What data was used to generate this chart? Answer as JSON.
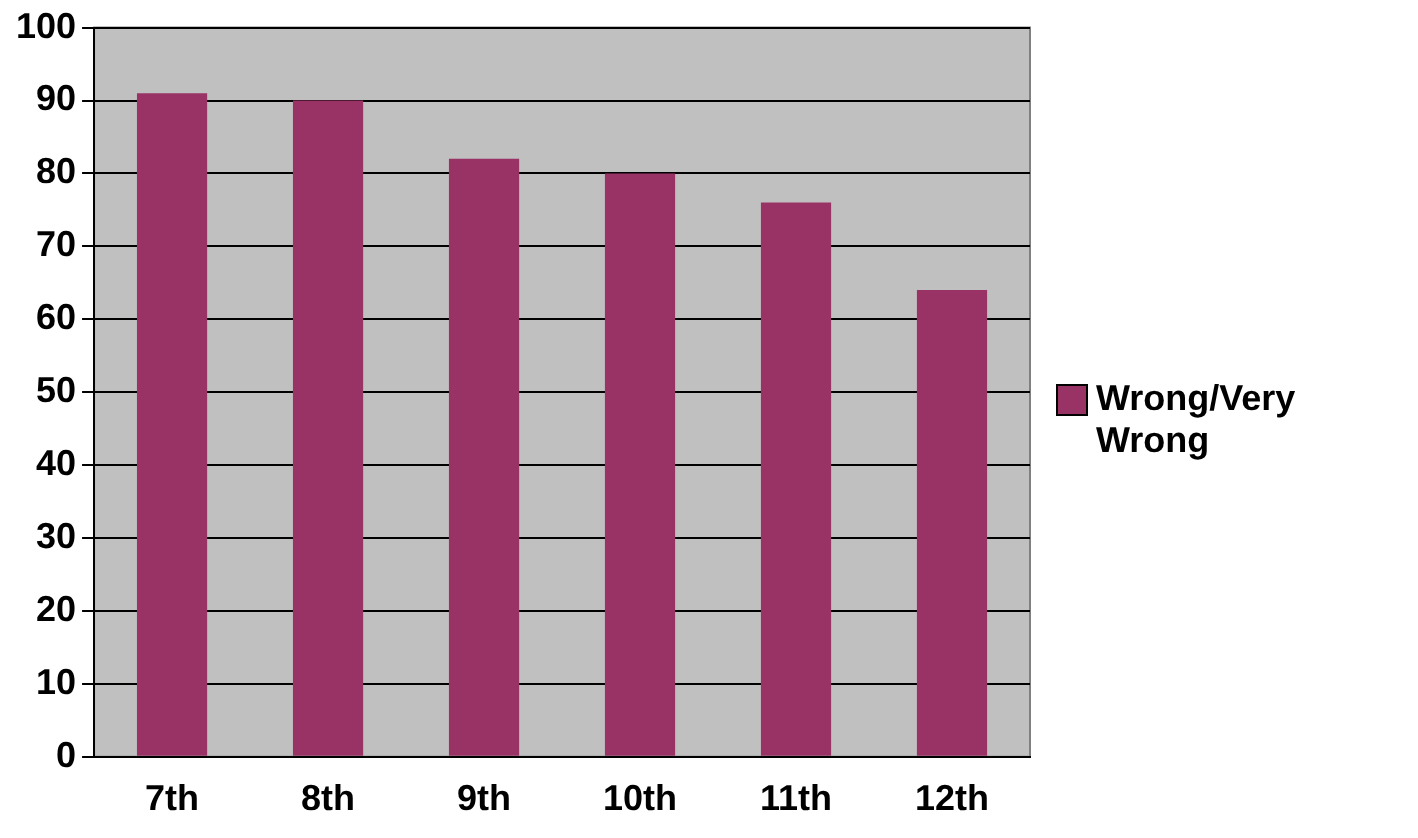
{
  "chart_data": {
    "type": "bar",
    "categories": [
      "7th",
      "8th",
      "9th",
      "10th",
      "11th",
      "12th"
    ],
    "series": [
      {
        "name": "Wrong/Very Wrong",
        "color": "#993366",
        "values": [
          91,
          90,
          82,
          80,
          76,
          64
        ]
      }
    ],
    "ylim": [
      0,
      100
    ],
    "yticks": [
      0,
      10,
      20,
      30,
      40,
      50,
      60,
      70,
      80,
      90,
      100
    ],
    "grid": "y",
    "legend": "right"
  }
}
